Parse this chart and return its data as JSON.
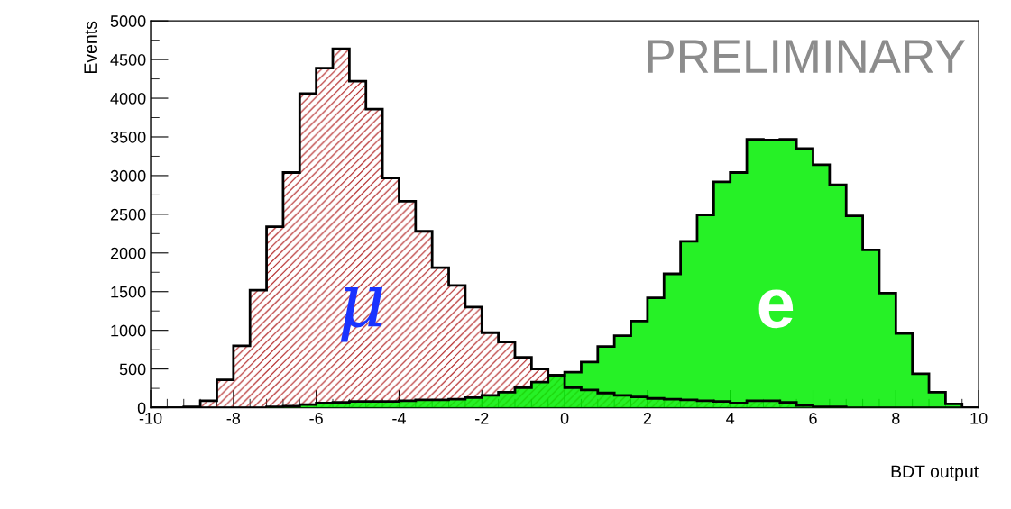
{
  "chart_data": {
    "type": "histogram",
    "xlabel": "BDT output",
    "ylabel": "Events",
    "annotations": [
      "PRELIMINARY"
    ],
    "bins": [
      -10,
      -9.6,
      -9.2,
      -8.8,
      -8.4,
      -8,
      -7.6,
      -7.2,
      -6.8,
      -6.4,
      -6,
      -5.6,
      -5.2,
      -4.8,
      -4.4,
      -4,
      -3.6,
      -3.2,
      -2.8,
      -2.4,
      -2,
      -1.6,
      -1.2,
      -0.8,
      -0.4,
      0,
      0.4,
      0.8,
      1.2,
      1.6,
      2,
      2.4,
      2.8,
      3.2,
      3.6,
      4,
      4.4,
      4.8,
      5.2,
      5.6,
      6,
      6.4,
      6.8,
      7.2,
      7.6,
      8,
      8.4,
      8.8,
      9.2,
      9.6,
      10
    ],
    "series": [
      {
        "name": "e",
        "color": "#00ee00",
        "values": [
          0,
          0,
          0,
          0,
          0,
          0,
          0,
          10,
          20,
          40,
          60,
          70,
          80,
          80,
          80,
          90,
          100,
          100,
          110,
          130,
          160,
          200,
          260,
          330,
          420,
          460,
          590,
          790,
          930,
          1120,
          1420,
          1730,
          2150,
          2490,
          2920,
          3040,
          3470,
          3460,
          3470,
          3350,
          3140,
          2880,
          2480,
          2040,
          1480,
          960,
          440,
          200,
          50,
          0
        ]
      },
      {
        "name": "μ",
        "color": "#b22222",
        "values": [
          0,
          0,
          10,
          90,
          360,
          800,
          1520,
          2340,
          3040,
          4060,
          4390,
          4640,
          4220,
          3860,
          2970,
          2670,
          2280,
          1810,
          1580,
          1300,
          970,
          850,
          650,
          500,
          420,
          260,
          230,
          190,
          160,
          140,
          120,
          110,
          100,
          90,
          80,
          60,
          90,
          90,
          70,
          30,
          10,
          10,
          0,
          0,
          0,
          0,
          0,
          0,
          0,
          0
        ]
      }
    ],
    "xlim": [
      -10,
      10
    ],
    "xticks": [
      -10,
      -8,
      -6,
      -4,
      -2,
      0,
      2,
      4,
      6,
      8,
      10
    ],
    "ylim": [
      0,
      5000
    ],
    "yticks": [
      0,
      500,
      1000,
      1500,
      2000,
      2500,
      3000,
      3500,
      4000,
      4500,
      5000
    ],
    "grid": false,
    "legend": false
  }
}
